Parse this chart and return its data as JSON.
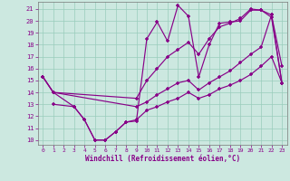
{
  "bg_color": "#cce8e0",
  "line_color": "#880088",
  "grid_color": "#99ccbb",
  "xlabel": "Windchill (Refroidissement éolien,°C)",
  "xlim": [
    -0.5,
    23.5
  ],
  "ylim": [
    9.6,
    21.6
  ],
  "xticks": [
    0,
    1,
    2,
    3,
    4,
    5,
    6,
    7,
    8,
    9,
    10,
    11,
    12,
    13,
    14,
    15,
    16,
    17,
    18,
    19,
    20,
    21,
    22,
    23
  ],
  "yticks": [
    10,
    11,
    12,
    13,
    14,
    15,
    16,
    17,
    18,
    19,
    20,
    21
  ],
  "lines": [
    {
      "x": [
        0,
        1,
        3,
        4,
        5,
        6,
        7,
        8,
        9,
        10,
        11,
        12,
        13,
        14,
        15,
        16,
        17,
        18,
        19,
        20,
        21,
        22,
        23
      ],
      "y": [
        15.3,
        14.0,
        12.8,
        11.7,
        10.0,
        10.0,
        10.7,
        11.5,
        11.6,
        18.5,
        19.9,
        18.3,
        21.3,
        20.4,
        15.3,
        18.0,
        19.8,
        19.9,
        20.0,
        20.9,
        20.9,
        20.5,
        16.2
      ]
    },
    {
      "x": [
        0,
        1,
        9,
        10,
        11,
        12,
        13,
        14,
        15,
        16,
        17,
        18,
        19,
        20,
        21,
        22,
        23
      ],
      "y": [
        15.3,
        14.0,
        13.5,
        15.0,
        16.0,
        17.0,
        17.6,
        18.2,
        17.2,
        18.5,
        19.5,
        19.8,
        20.2,
        21.0,
        20.9,
        20.3,
        14.8
      ]
    },
    {
      "x": [
        0,
        1,
        9,
        10,
        11,
        12,
        13,
        14,
        15,
        16,
        17,
        18,
        19,
        20,
        21,
        22,
        23
      ],
      "y": [
        15.3,
        14.0,
        12.8,
        13.2,
        13.8,
        14.3,
        14.8,
        15.0,
        14.2,
        14.8,
        15.3,
        15.8,
        16.5,
        17.2,
        17.8,
        20.5,
        14.8
      ]
    },
    {
      "x": [
        1,
        3,
        4,
        5,
        6,
        7,
        8,
        9,
        10,
        11,
        12,
        13,
        14,
        15,
        16,
        17,
        18,
        19,
        20,
        21,
        22,
        23
      ],
      "y": [
        13.0,
        12.8,
        11.7,
        10.0,
        10.0,
        10.7,
        11.5,
        11.7,
        12.5,
        12.8,
        13.2,
        13.5,
        14.0,
        13.5,
        13.8,
        14.3,
        14.6,
        15.0,
        15.5,
        16.2,
        17.0,
        14.8
      ]
    }
  ]
}
